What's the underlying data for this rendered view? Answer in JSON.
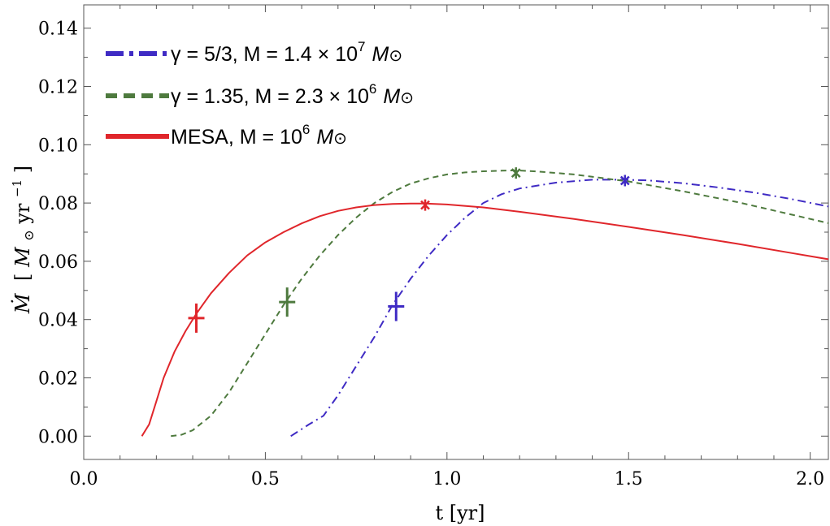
{
  "chart_data": {
    "type": "line",
    "xlabel": "t [yr]",
    "ylabel": {
      "main": "Ṁ",
      "bracket_open": "[",
      "unit_mass": "M",
      "sun": "⊙",
      "unit_time": " yr",
      "exponent": "−1",
      "bracket_close": "]"
    },
    "xlim": [
      0,
      2.05
    ],
    "ylim": [
      -0.008,
      0.148
    ],
    "x_ticks": [
      0.0,
      0.5,
      1.0,
      1.5,
      2.0
    ],
    "x_tick_labels": [
      "0.0",
      "0.5",
      "1.0",
      "1.5",
      "2.0"
    ],
    "y_ticks": [
      0.0,
      0.02,
      0.04,
      0.06,
      0.08,
      0.1,
      0.12,
      0.14
    ],
    "y_tick_labels": [
      "0.00",
      "0.02",
      "0.04",
      "0.06",
      "0.08",
      "0.10",
      "0.12",
      "0.14"
    ],
    "grid": false,
    "legend_position": "top-left",
    "series": [
      {
        "name": "γ = 5/3, M = 1.4 × 10^7 M⊙",
        "legend": {
          "pre": "γ = 5/3, M = 1.4 × 10",
          "exp": "7",
          "mass": "M",
          "sun": "⊙"
        },
        "color": "#3F2BC4",
        "dash": "dashdot",
        "x": [
          0.57,
          0.62,
          0.66,
          0.7,
          0.75,
          0.8,
          0.85,
          0.9,
          0.95,
          1.0,
          1.05,
          1.1,
          1.15,
          1.2,
          1.3,
          1.4,
          1.48,
          1.55,
          1.65,
          1.75,
          1.85,
          1.95,
          2.05
        ],
        "y": [
          0.0,
          0.004,
          0.007,
          0.014,
          0.024,
          0.034,
          0.045,
          0.054,
          0.062,
          0.069,
          0.075,
          0.08,
          0.083,
          0.085,
          0.087,
          0.088,
          0.088,
          0.0878,
          0.0868,
          0.0853,
          0.0835,
          0.0813,
          0.0788
        ],
        "markers": {
          "plus": [
            0.86,
            0.0445
          ],
          "star": [
            1.49,
            0.0877
          ]
        }
      },
      {
        "name": "γ = 1.35, M = 2.3 × 10^6 M⊙",
        "legend": {
          "pre": "γ = 1.35, M = 2.3 × 10",
          "exp": "6",
          "mass": "M",
          "sun": "⊙"
        },
        "color": "#4E7A3E",
        "dash": "dashed",
        "x": [
          0.24,
          0.27,
          0.3,
          0.35,
          0.4,
          0.45,
          0.5,
          0.55,
          0.6,
          0.65,
          0.7,
          0.75,
          0.8,
          0.85,
          0.9,
          0.95,
          1.0,
          1.05,
          1.1,
          1.15,
          1.19,
          1.25,
          1.35,
          1.5,
          1.65,
          1.8,
          1.95,
          2.05
        ],
        "y": [
          0.0,
          0.0005,
          0.002,
          0.007,
          0.015,
          0.025,
          0.035,
          0.045,
          0.054,
          0.062,
          0.069,
          0.075,
          0.08,
          0.0838,
          0.0867,
          0.0885,
          0.0898,
          0.0905,
          0.0909,
          0.0911,
          0.0912,
          0.0908,
          0.0898,
          0.0874,
          0.084,
          0.0803,
          0.076,
          0.0731
        ],
        "markers": {
          "plus": [
            0.56,
            0.046
          ],
          "star": [
            1.19,
            0.0903
          ]
        }
      },
      {
        "name": "MESA, M = 10^6 M⊙",
        "legend": {
          "pre": "MESA, M = 10",
          "exp": "6",
          "mass": "M",
          "sun": "⊙"
        },
        "color": "#E0262B",
        "dash": "solid",
        "x": [
          0.16,
          0.18,
          0.2,
          0.22,
          0.25,
          0.28,
          0.31,
          0.35,
          0.4,
          0.45,
          0.5,
          0.55,
          0.6,
          0.65,
          0.7,
          0.75,
          0.8,
          0.85,
          0.9,
          0.94,
          1.0,
          1.1,
          1.2,
          1.35,
          1.5,
          1.65,
          1.8,
          1.95,
          2.05
        ],
        "y": [
          0.0,
          0.004,
          0.012,
          0.02,
          0.029,
          0.036,
          0.042,
          0.049,
          0.056,
          0.062,
          0.0665,
          0.07,
          0.073,
          0.0755,
          0.0773,
          0.0785,
          0.0793,
          0.0797,
          0.0798,
          0.0798,
          0.0795,
          0.0785,
          0.077,
          0.0745,
          0.0718,
          0.069,
          0.066,
          0.0628,
          0.0607
        ],
        "markers": {
          "plus": [
            0.31,
            0.0405
          ],
          "star": [
            0.94,
            0.0793
          ]
        }
      }
    ]
  }
}
